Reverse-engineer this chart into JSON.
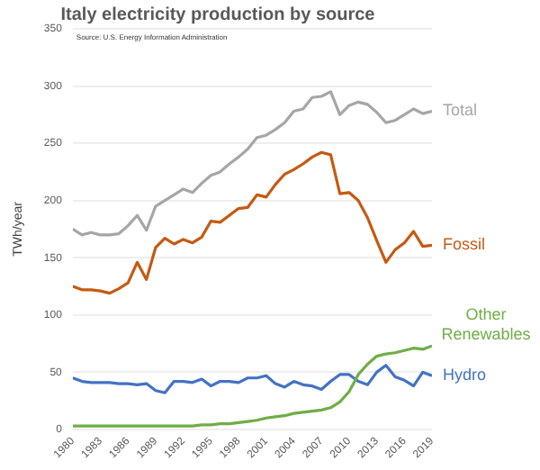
{
  "chart_data": {
    "type": "line",
    "title": "Italy electricity production by source",
    "ylabel": "TWh/year",
    "annotations": [
      "Source: U.S. Energy Information Administration"
    ],
    "x": [
      1980,
      1981,
      1982,
      1983,
      1984,
      1985,
      1986,
      1987,
      1988,
      1989,
      1990,
      1991,
      1992,
      1993,
      1994,
      1995,
      1996,
      1997,
      1998,
      1999,
      2000,
      2001,
      2002,
      2003,
      2004,
      2005,
      2006,
      2007,
      2008,
      2009,
      2010,
      2011,
      2012,
      2013,
      2014,
      2015,
      2016,
      2017,
      2018,
      2019
    ],
    "xlim": [
      1980,
      2019
    ],
    "xticks": [
      1980,
      1983,
      1986,
      1989,
      1992,
      1995,
      1998,
      2001,
      2004,
      2007,
      2010,
      2013,
      2016,
      2019
    ],
    "ylim": [
      0,
      350
    ],
    "yticks": [
      0,
      50,
      100,
      150,
      200,
      250,
      300,
      350
    ],
    "grid": "y",
    "legend": false,
    "marker": "none",
    "line_style": "solid",
    "series": [
      {
        "name": "Total",
        "color": "#a6a6a6",
        "values": [
          175,
          170,
          172,
          170,
          170,
          171,
          178,
          187,
          174,
          195,
          200,
          205,
          210,
          207,
          215,
          222,
          225,
          232,
          238,
          245,
          255,
          257,
          262,
          268,
          278,
          280,
          290,
          291,
          295,
          275,
          283,
          286,
          284,
          277,
          268,
          270,
          275,
          280,
          276,
          278
        ]
      },
      {
        "name": "Fossil",
        "color": "#c55a11",
        "values": [
          125,
          122,
          122,
          121,
          119,
          123,
          128,
          146,
          131,
          159,
          167,
          162,
          166,
          163,
          168,
          182,
          181,
          187,
          193,
          194,
          205,
          203,
          214,
          223,
          227,
          232,
          238,
          242,
          240,
          206,
          207,
          200,
          185,
          165,
          146,
          157,
          163,
          173,
          160,
          161
        ]
      },
      {
        "name": "Other Renewables",
        "color": "#70ad47",
        "values": [
          3,
          3,
          3,
          3,
          3,
          3,
          3,
          3,
          3,
          3,
          3,
          3,
          3,
          3,
          4,
          4,
          5,
          5,
          6,
          7,
          8,
          10,
          11,
          12,
          14,
          15,
          16,
          17,
          19,
          24,
          33,
          48,
          57,
          64,
          66,
          67,
          69,
          71,
          70,
          73
        ]
      },
      {
        "name": "Hydro",
        "color": "#4472c4",
        "values": [
          45,
          42,
          41,
          41,
          41,
          40,
          40,
          39,
          40,
          34,
          32,
          42,
          42,
          41,
          44,
          38,
          42,
          42,
          41,
          45,
          45,
          47,
          40,
          37,
          42,
          39,
          38,
          35,
          42,
          48,
          48,
          42,
          39,
          50,
          56,
          46,
          43,
          38,
          50,
          47
        ]
      }
    ]
  }
}
